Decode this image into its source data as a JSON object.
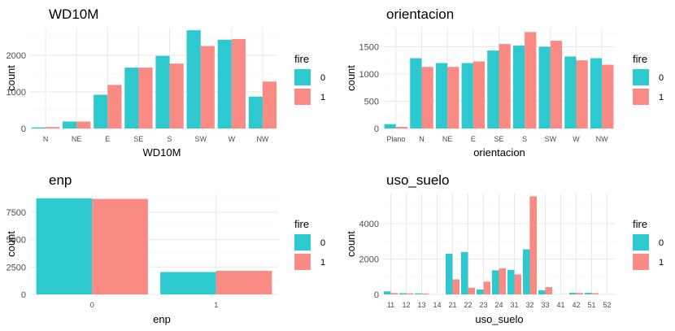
{
  "chart_data": [
    {
      "type": "bar",
      "title": "WD10M",
      "xlabel": "WD10M",
      "ylabel": "count",
      "categories": [
        "N",
        "NE",
        "E",
        "SE",
        "S",
        "SW",
        "W",
        "NW"
      ],
      "series": [
        {
          "name": "0",
          "values": [
            30,
            190,
            920,
            1660,
            1980,
            2680,
            2420,
            870
          ]
        },
        {
          "name": "1",
          "values": [
            40,
            190,
            1190,
            1660,
            1770,
            2250,
            2440,
            1280
          ]
        }
      ],
      "ylim": [
        0,
        2750
      ],
      "yticks": [
        0,
        1000,
        2000
      ],
      "legend_title": "fire",
      "legend_position": "right",
      "grid": true
    },
    {
      "type": "bar",
      "title": "orientacion",
      "xlabel": "orientacion",
      "ylabel": "count",
      "categories": [
        "Plano",
        "N",
        "NE",
        "E",
        "SE",
        "S",
        "SW",
        "W",
        "NW"
      ],
      "series": [
        {
          "name": "0",
          "values": [
            80,
            1290,
            1200,
            1200,
            1430,
            1520,
            1500,
            1320,
            1290
          ]
        },
        {
          "name": "1",
          "values": [
            30,
            1130,
            1130,
            1230,
            1550,
            1770,
            1610,
            1250,
            1170
          ]
        }
      ],
      "ylim": [
        0,
        1850
      ],
      "yticks": [
        0,
        500,
        1000,
        1500
      ],
      "legend_title": "fire",
      "legend_position": "right",
      "grid": true
    },
    {
      "type": "bar",
      "title": "enp",
      "xlabel": "enp",
      "ylabel": "count",
      "categories": [
        "0",
        "1"
      ],
      "series": [
        {
          "name": "0",
          "values": [
            8770,
            2040
          ]
        },
        {
          "name": "1",
          "values": [
            8710,
            2150
          ]
        }
      ],
      "ylim": [
        0,
        9200
      ],
      "yticks": [
        0,
        2500,
        5000,
        7500
      ],
      "legend_title": "fire",
      "legend_position": "right",
      "grid": true
    },
    {
      "type": "bar",
      "title": "uso_suelo",
      "xlabel": "uso_suelo",
      "ylabel": "count",
      "categories": [
        "11",
        "12",
        "13",
        "14",
        "21",
        "22",
        "23",
        "24",
        "31",
        "32",
        "33",
        "41",
        "42",
        "51",
        "52"
      ],
      "series": [
        {
          "name": "0",
          "values": [
            170,
            70,
            60,
            0,
            2300,
            2400,
            280,
            1360,
            1390,
            2550,
            230,
            0,
            90,
            90,
            0
          ]
        },
        {
          "name": "1",
          "values": [
            80,
            60,
            50,
            0,
            850,
            380,
            720,
            1480,
            1130,
            5540,
            410,
            0,
            80,
            70,
            0
          ]
        }
      ],
      "ylim": [
        0,
        5700
      ],
      "yticks": [
        0,
        2000,
        4000
      ],
      "legend_title": "fire",
      "legend_position": "right",
      "grid": true
    }
  ],
  "colors": {
    "fire_0": "#2ec8cf",
    "fire_1": "#fa8a84",
    "grid_major": "#e8e8e8",
    "grid_minor": "#f4f4f4"
  }
}
